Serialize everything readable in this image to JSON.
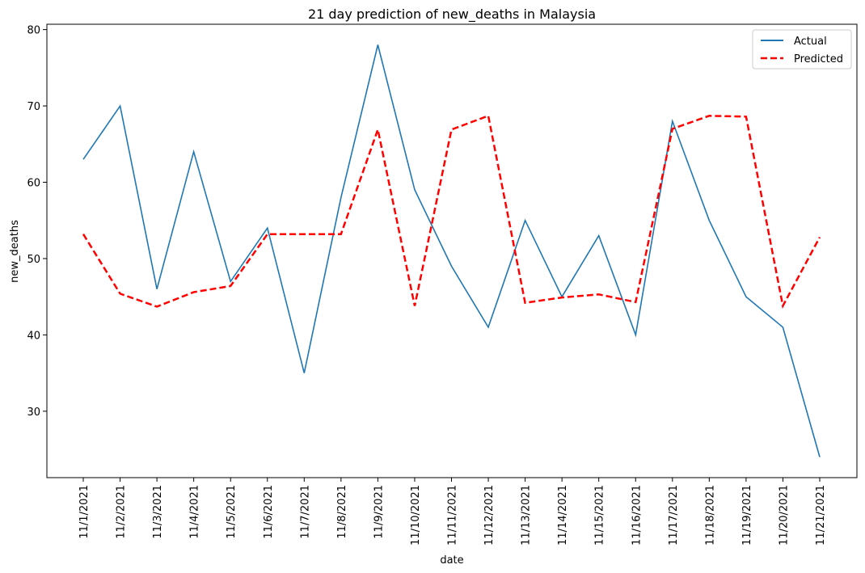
{
  "chart_data": {
    "type": "line",
    "title": "21 day prediction of new_deaths in Malaysia",
    "xlabel": "date",
    "ylabel": "new_deaths",
    "categories": [
      "11/1/2021",
      "11/2/2021",
      "11/3/2021",
      "11/4/2021",
      "11/5/2021",
      "11/6/2021",
      "11/7/2021",
      "11/8/2021",
      "11/9/2021",
      "11/10/2021",
      "11/11/2021",
      "11/12/2021",
      "11/13/2021",
      "11/14/2021",
      "11/15/2021",
      "11/16/2021",
      "11/17/2021",
      "11/18/2021",
      "11/19/2021",
      "11/20/2021",
      "11/21/2021"
    ],
    "y_ticks": [
      "30",
      "40",
      "50",
      "60",
      "70",
      "80"
    ],
    "ylim": [
      21.3,
      80.7
    ],
    "grid": false,
    "legend_position": "top-right",
    "series": [
      {
        "name": "Actual",
        "color": "#1f77b4",
        "style": "solid",
        "values": [
          63,
          70,
          46,
          64,
          47,
          54,
          35,
          58,
          78,
          59,
          49,
          41,
          55,
          45,
          53,
          40,
          68,
          55,
          45,
          41,
          24
        ]
      },
      {
        "name": "Predicted",
        "color": "#ff0000",
        "style": "dashed",
        "values": [
          53.2,
          45.4,
          43.7,
          45.6,
          46.4,
          53.2,
          53.2,
          53.2,
          66.9,
          43.8,
          66.9,
          68.7,
          44.2,
          44.9,
          45.3,
          44.3,
          67.0,
          68.7,
          68.6,
          43.8,
          52.8
        ]
      }
    ]
  }
}
